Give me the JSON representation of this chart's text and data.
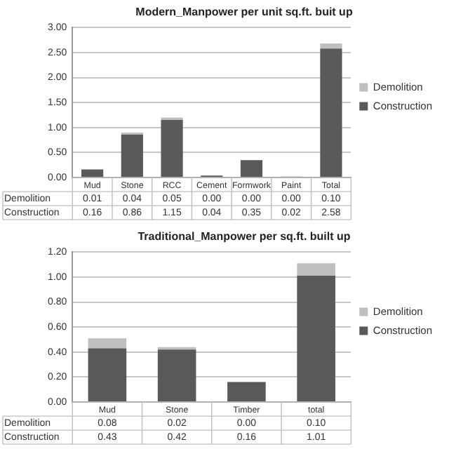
{
  "chart_data": [
    {
      "type": "bar",
      "title": "Modern_Manpower per unit sq.ft. buit up",
      "categories": [
        "Mud",
        "Stone",
        "RCC",
        "Cement",
        "Formwork",
        "Paint",
        "Total"
      ],
      "stacked": true,
      "series": [
        {
          "name": "Construction",
          "color": "#595959",
          "values": [
            0.16,
            0.86,
            1.15,
            0.04,
            0.35,
            0.02,
            2.58
          ],
          "value_labels": [
            "0.16",
            "0.86",
            "1.15",
            "0.04",
            "0.35",
            "0.02",
            "2.58"
          ]
        },
        {
          "name": "Demolition",
          "color": "#bfbfbf",
          "values": [
            0.01,
            0.04,
            0.05,
            0.0,
            0.0,
            0.0,
            0.1
          ],
          "value_labels": [
            "0.01",
            "0.04",
            "0.05",
            "0.00",
            "0.00",
            "0.00",
            "0.10"
          ]
        }
      ],
      "ylim": [
        0,
        3
      ],
      "yticks": [
        {
          "value": 0,
          "label": "0.00"
        },
        {
          "value": 0.5,
          "label": "0.50"
        },
        {
          "value": 1,
          "label": "1.00"
        },
        {
          "value": 1.5,
          "label": "1.50"
        },
        {
          "value": 2,
          "label": "2.00"
        },
        {
          "value": 2.5,
          "label": "2.50"
        },
        {
          "value": 3,
          "label": "3.00"
        }
      ],
      "grid": "y",
      "legend": "right"
    },
    {
      "type": "bar",
      "title": "Traditional_Manpower per sq.ft. built up",
      "categories": [
        "Mud",
        "Stone",
        "Timber",
        "total"
      ],
      "stacked": true,
      "series": [
        {
          "name": "Construction",
          "color": "#595959",
          "values": [
            0.43,
            0.42,
            0.16,
            1.01
          ],
          "value_labels": [
            "0.43",
            "0.42",
            "0.16",
            "1.01"
          ]
        },
        {
          "name": "Demolition",
          "color": "#bfbfbf",
          "values": [
            0.08,
            0.02,
            0.0,
            0.1
          ],
          "value_labels": [
            "0.08",
            "0.02",
            "0.00",
            "0.10"
          ]
        }
      ],
      "ylim": [
        0,
        1.2
      ],
      "yticks": [
        {
          "value": 0,
          "label": "0.00"
        },
        {
          "value": 0.2,
          "label": "0.20"
        },
        {
          "value": 0.4,
          "label": "0.40"
        },
        {
          "value": 0.6,
          "label": "0.60"
        },
        {
          "value": 0.8,
          "label": "0.80"
        },
        {
          "value": 1,
          "label": "1.00"
        },
        {
          "value": 1.2,
          "label": "1.20"
        }
      ],
      "grid": "y",
      "legend": "right"
    }
  ]
}
